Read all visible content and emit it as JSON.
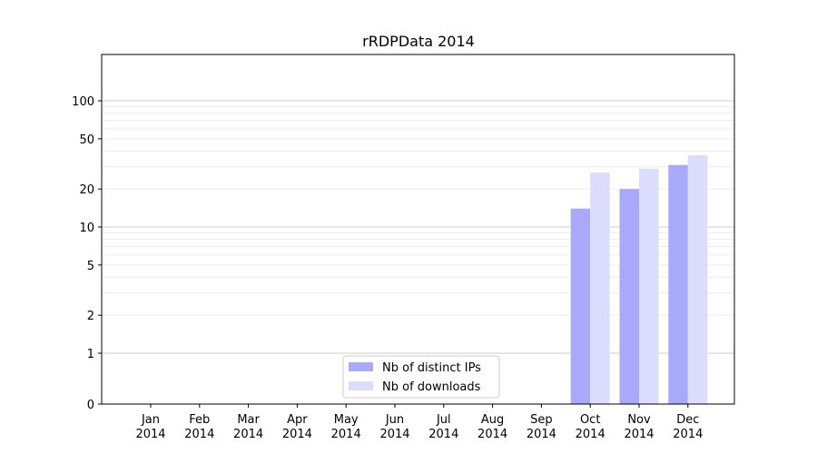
{
  "chart_data": {
    "type": "bar",
    "title": "rRDPData 2014",
    "xlabel": "",
    "ylabel": "",
    "yscale": "symlog",
    "ylim": [
      0,
      110
    ],
    "y_ticks": [
      0,
      1,
      2,
      5,
      10,
      20,
      50,
      100
    ],
    "grid": "horizontal",
    "legend_position": "lower-center",
    "categories": [
      [
        "Jan",
        "2014"
      ],
      [
        "Feb",
        "2014"
      ],
      [
        "Mar",
        "2014"
      ],
      [
        "Apr",
        "2014"
      ],
      [
        "May",
        "2014"
      ],
      [
        "Jun",
        "2014"
      ],
      [
        "Jul",
        "2014"
      ],
      [
        "Aug",
        "2014"
      ],
      [
        "Sep",
        "2014"
      ],
      [
        "Oct",
        "2014"
      ],
      [
        "Nov",
        "2014"
      ],
      [
        "Dec",
        "2014"
      ]
    ],
    "series": [
      {
        "name": "Nb of distinct IPs",
        "color": "#a9a9fb",
        "values": [
          0,
          0,
          0,
          0,
          0,
          0,
          0,
          0,
          0,
          14,
          20,
          31
        ]
      },
      {
        "name": "Nb of downloads",
        "color": "#dcdcfc",
        "values": [
          0,
          0,
          0,
          0,
          0,
          0,
          0,
          0,
          0,
          27,
          29,
          37
        ]
      }
    ]
  }
}
